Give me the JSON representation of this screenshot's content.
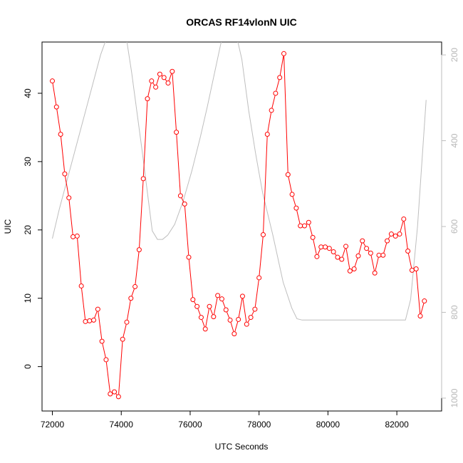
{
  "chart_data": {
    "type": "line",
    "title": "ORCAS RF14vlonN UIC",
    "xlabel": "UTC Seconds",
    "ylabel": "UIC",
    "xlim": [
      71700,
      83300
    ],
    "ylim": [
      -6.5,
      47.5
    ],
    "y2lim": [
      1030,
      170
    ],
    "x_ticks": [
      72000,
      74000,
      76000,
      78000,
      80000,
      82000
    ],
    "y_ticks": [
      0,
      10,
      20,
      30,
      40
    ],
    "y2_ticks": [
      200,
      400,
      600,
      800,
      1000
    ],
    "grid": false,
    "legend": "none",
    "colors": {
      "uic": "#ff0000",
      "altitude": "#bebebe"
    },
    "series": [
      {
        "axis": "left",
        "style": "line+circle-markers",
        "x": [
          72000,
          72120,
          72240,
          72360,
          72480,
          72600,
          72720,
          72840,
          72960,
          73080,
          73200,
          73320,
          73440,
          73560,
          73680,
          73800,
          73920,
          74040,
          74160,
          74280,
          74400,
          74520,
          74640,
          74760,
          74880,
          75000,
          75120,
          75240,
          75360,
          75480,
          75600,
          75720,
          75840,
          75960,
          76080,
          76200,
          76320,
          76440,
          76560,
          76680,
          76800,
          76920,
          77040,
          77160,
          77280,
          77400,
          77520,
          77640,
          77760,
          77880,
          78000,
          78120,
          78240,
          78360,
          78480,
          78600,
          78720,
          78840,
          78960,
          79080,
          79200,
          79320,
          79440,
          79560,
          79680,
          79800,
          79920,
          80040,
          80160,
          80280,
          80400,
          80520,
          80640,
          80760,
          80880,
          81000,
          81120,
          81240,
          81360,
          81480,
          81600,
          81720,
          81840,
          81960,
          82080,
          82200,
          82320,
          82440,
          82560,
          82680,
          82800
        ],
        "values": [
          41.8,
          38.0,
          34.0,
          28.2,
          24.7,
          19.0,
          19.1,
          11.8,
          6.6,
          6.7,
          6.8,
          8.4,
          3.7,
          1.0,
          -4.0,
          -3.7,
          -4.4,
          4.0,
          6.5,
          10.0,
          11.7,
          17.1,
          27.5,
          39.2,
          41.8,
          40.9,
          42.8,
          42.3,
          41.5,
          43.2,
          34.3,
          25.0,
          23.8,
          16.0,
          9.8,
          8.8,
          7.2,
          5.5,
          8.8,
          7.3,
          10.4,
          9.9,
          8.3,
          6.8,
          4.8,
          6.9,
          10.3,
          6.2,
          7.2,
          8.4,
          13.0,
          19.3,
          34.0,
          37.5,
          40.0,
          42.3,
          45.8,
          28.1,
          25.2,
          23.2,
          20.6,
          20.6,
          21.1,
          18.9,
          16.1,
          17.5,
          17.5,
          17.3,
          16.8,
          16.0,
          15.7,
          17.6,
          14.0,
          14.3,
          16.2,
          18.4,
          17.3,
          16.6,
          13.7,
          16.3,
          16.3,
          18.4,
          19.4,
          19.1,
          19.4,
          21.6,
          16.9,
          14.1,
          14.3,
          7.4,
          9.6
        ]
      },
      {
        "axis": "right",
        "style": "line",
        "x": [
          72000,
          72200,
          72500,
          72800,
          73100,
          73400,
          73600,
          73800,
          74050,
          74300,
          74600,
          74900,
          75050,
          75200,
          75350,
          75550,
          75800,
          76050,
          76300,
          76500,
          76700,
          76900,
          77100,
          77300,
          77500,
          77700,
          77900,
          78100,
          78400,
          78700,
          78950,
          79100,
          79250,
          79500,
          80000,
          81000,
          82000,
          82250,
          82400,
          82600,
          82850
        ],
        "values": [
          628,
          560,
          470,
          380,
          290,
          200,
          155,
          120,
          110,
          240,
          420,
          610,
          630,
          630,
          620,
          595,
          540,
          470,
          390,
          320,
          245,
          170,
          135,
          140,
          210,
          330,
          430,
          520,
          620,
          730,
          790,
          815,
          818,
          818,
          818,
          818,
          818,
          818,
          770,
          600,
          305
        ]
      }
    ]
  }
}
